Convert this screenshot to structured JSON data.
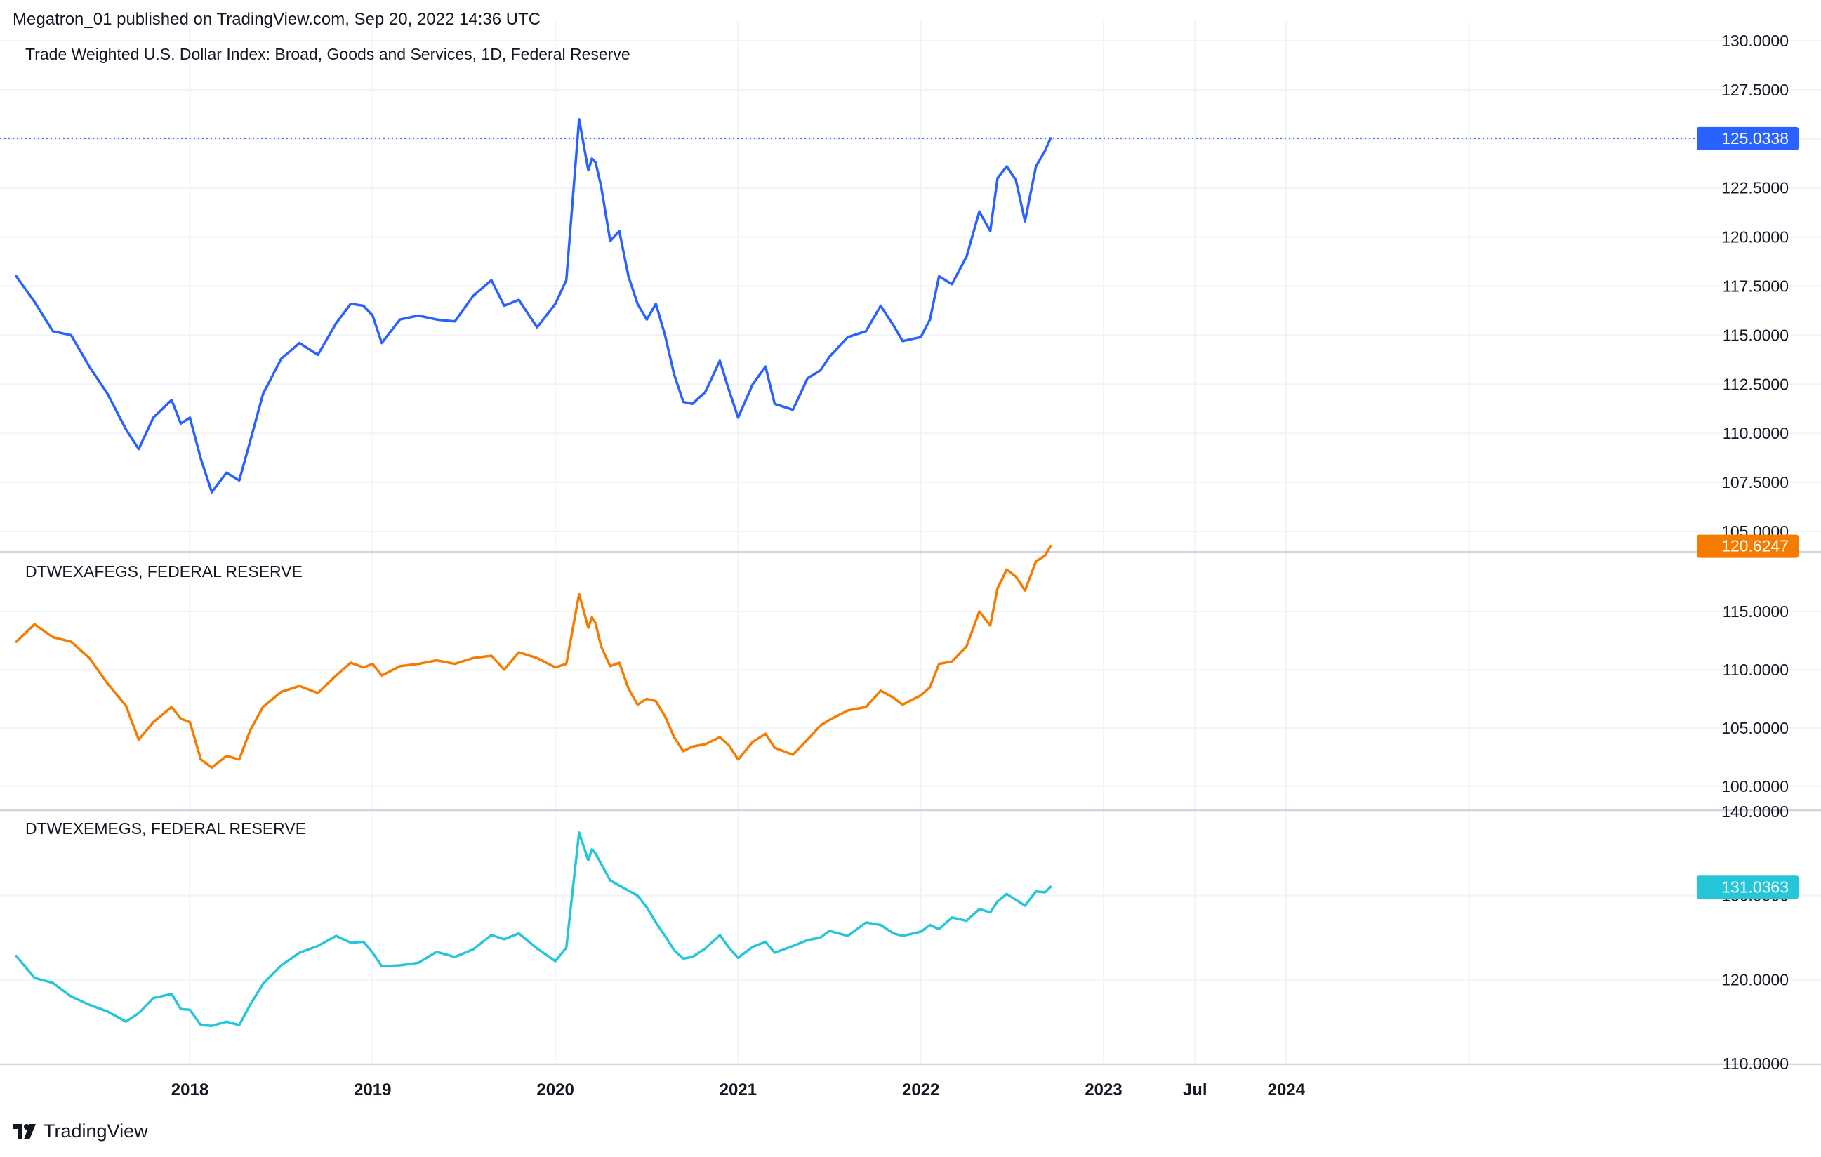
{
  "header": {
    "text": "Megatron_01 published on TradingView.com, Sep 20, 2022 14:36 UTC"
  },
  "footer": {
    "brand": "TradingView",
    "logo_icon": "tradingview-logo-icon"
  },
  "chart_data": [
    {
      "type": "line",
      "title": "Trade Weighted U.S. Dollar Index: Broad, Goods and Services, 1D, Federal Reserve",
      "color": "#2962ff",
      "last_value_label": "125.0338",
      "last_value": 125.0338,
      "ylim": [
        104.0,
        130.0
      ],
      "yticks": [
        105,
        107.5,
        110,
        112.5,
        115,
        117.5,
        120,
        122.5,
        125,
        127.5,
        130
      ],
      "ytick_labels": [
        "105.0000",
        "107.5000",
        "110.0000",
        "112.5000",
        "115.0000",
        "117.5000",
        "120.0000",
        "122.5000",
        "125.0000",
        "127.5000",
        "130.0000"
      ],
      "hidden_tick_labels": [
        "125.0000"
      ],
      "price_line": true,
      "series": [
        {
          "x": [
            2017.05,
            2017.15,
            2017.25,
            2017.35,
            2017.45,
            2017.55,
            2017.65,
            2017.72,
            2017.8,
            2017.9,
            2017.95,
            2018.0,
            2018.06,
            2018.12,
            2018.2,
            2018.27,
            2018.33,
            2018.4,
            2018.5,
            2018.6,
            2018.7,
            2018.8,
            2018.88,
            2018.95,
            2019.0,
            2019.05,
            2019.15,
            2019.25,
            2019.35,
            2019.45,
            2019.55,
            2019.65,
            2019.72,
            2019.8,
            2019.9,
            2020.0,
            2020.06,
            2020.13,
            2020.18,
            2020.2,
            2020.22,
            2020.25,
            2020.3,
            2020.35,
            2020.4,
            2020.45,
            2020.5,
            2020.55,
            2020.6,
            2020.65,
            2020.7,
            2020.75,
            2020.82,
            2020.9,
            2020.95,
            2021.0,
            2021.08,
            2021.15,
            2021.2,
            2021.3,
            2021.38,
            2021.45,
            2021.5,
            2021.6,
            2021.7,
            2021.78,
            2021.85,
            2021.9,
            2022.0,
            2022.05,
            2022.1,
            2022.17,
            2022.25,
            2022.32,
            2022.38,
            2022.42,
            2022.47,
            2022.52,
            2022.57,
            2022.63,
            2022.68,
            2022.71
          ],
          "y": [
            118.0,
            116.7,
            115.2,
            115.0,
            113.4,
            112.0,
            110.2,
            109.2,
            110.8,
            111.7,
            110.5,
            110.8,
            108.7,
            107.0,
            108.0,
            107.6,
            109.6,
            112.0,
            113.8,
            114.6,
            114.0,
            115.6,
            116.6,
            116.5,
            116.0,
            114.6,
            115.8,
            116.0,
            115.8,
            115.7,
            117.0,
            117.8,
            116.5,
            116.8,
            115.4,
            116.6,
            117.8,
            126.0,
            123.4,
            124.0,
            123.8,
            122.6,
            119.8,
            120.3,
            118.0,
            116.6,
            115.8,
            116.6,
            115.0,
            113.0,
            111.6,
            111.5,
            112.1,
            113.7,
            112.2,
            110.8,
            112.5,
            113.4,
            111.5,
            111.2,
            112.8,
            113.2,
            113.9,
            114.9,
            115.2,
            116.5,
            115.5,
            114.7,
            114.9,
            115.8,
            118.0,
            117.6,
            119.0,
            121.3,
            120.3,
            123.0,
            123.6,
            122.9,
            120.8,
            123.6,
            124.4,
            125.03
          ]
        }
      ]
    },
    {
      "type": "line",
      "title": "DTWEXAFEGS, FEDERAL RESERVE",
      "color": "#f57c00",
      "last_value_label": "120.6247",
      "last_value": 120.6247,
      "ylim": [
        98.0,
        120.0
      ],
      "yticks": [
        100,
        105,
        110,
        115
      ],
      "ytick_labels": [
        "100.0000",
        "105.0000",
        "110.0000",
        "115.0000"
      ],
      "series": [
        {
          "x": [
            2017.05,
            2017.15,
            2017.25,
            2017.35,
            2017.45,
            2017.55,
            2017.65,
            2017.72,
            2017.8,
            2017.9,
            2017.95,
            2018.0,
            2018.06,
            2018.12,
            2018.2,
            2018.27,
            2018.33,
            2018.4,
            2018.5,
            2018.6,
            2018.7,
            2018.8,
            2018.88,
            2018.95,
            2019.0,
            2019.05,
            2019.15,
            2019.25,
            2019.35,
            2019.45,
            2019.55,
            2019.65,
            2019.72,
            2019.8,
            2019.9,
            2020.0,
            2020.06,
            2020.13,
            2020.18,
            2020.2,
            2020.22,
            2020.25,
            2020.3,
            2020.35,
            2020.4,
            2020.45,
            2020.5,
            2020.55,
            2020.6,
            2020.65,
            2020.7,
            2020.75,
            2020.82,
            2020.9,
            2020.95,
            2021.0,
            2021.08,
            2021.15,
            2021.2,
            2021.3,
            2021.38,
            2021.45,
            2021.5,
            2021.6,
            2021.7,
            2021.78,
            2021.85,
            2021.9,
            2022.0,
            2022.05,
            2022.1,
            2022.17,
            2022.25,
            2022.32,
            2022.38,
            2022.42,
            2022.47,
            2022.52,
            2022.57,
            2022.63,
            2022.68,
            2022.71
          ],
          "y": [
            112.4,
            113.9,
            112.8,
            112.4,
            111.0,
            108.8,
            106.9,
            104.0,
            105.5,
            106.8,
            105.8,
            105.5,
            102.3,
            101.6,
            102.6,
            102.3,
            104.8,
            106.8,
            108.1,
            108.6,
            108.0,
            109.5,
            110.6,
            110.2,
            110.5,
            109.5,
            110.3,
            110.5,
            110.8,
            110.5,
            111.0,
            111.2,
            110.0,
            111.5,
            111.0,
            110.2,
            110.5,
            116.5,
            113.6,
            114.5,
            114.0,
            112.0,
            110.3,
            110.6,
            108.4,
            107.0,
            107.5,
            107.3,
            106.0,
            104.2,
            103.0,
            103.4,
            103.6,
            104.2,
            103.5,
            102.3,
            103.8,
            104.5,
            103.3,
            102.7,
            104.0,
            105.2,
            105.7,
            106.5,
            106.8,
            108.2,
            107.6,
            107.0,
            107.8,
            108.5,
            110.5,
            110.7,
            112.0,
            115.0,
            113.8,
            117.0,
            118.6,
            118.0,
            116.8,
            119.3,
            119.8,
            120.62
          ]
        }
      ]
    },
    {
      "type": "line",
      "title": "DTWEXEMEGS, FEDERAL RESERVE",
      "color": "#26c6da",
      "last_value_label": "131.0363",
      "last_value": 131.0363,
      "ylim": [
        110.0,
        140.0
      ],
      "yticks": [
        110,
        120,
        130,
        140
      ],
      "ytick_labels": [
        "110.0000",
        "120.0000",
        "130.0000",
        "140.0000"
      ],
      "hidden_tick_labels": [
        "130.0000"
      ],
      "series": [
        {
          "x": [
            2017.05,
            2017.15,
            2017.25,
            2017.35,
            2017.45,
            2017.55,
            2017.65,
            2017.72,
            2017.8,
            2017.9,
            2017.95,
            2018.0,
            2018.06,
            2018.12,
            2018.2,
            2018.27,
            2018.33,
            2018.4,
            2018.5,
            2018.6,
            2018.7,
            2018.8,
            2018.88,
            2018.95,
            2019.0,
            2019.05,
            2019.15,
            2019.25,
            2019.35,
            2019.45,
            2019.55,
            2019.65,
            2019.72,
            2019.8,
            2019.9,
            2020.0,
            2020.06,
            2020.13,
            2020.18,
            2020.2,
            2020.22,
            2020.25,
            2020.3,
            2020.35,
            2020.4,
            2020.45,
            2020.5,
            2020.55,
            2020.6,
            2020.65,
            2020.7,
            2020.75,
            2020.82,
            2020.9,
            2020.95,
            2021.0,
            2021.08,
            2021.15,
            2021.2,
            2021.3,
            2021.38,
            2021.45,
            2021.5,
            2021.6,
            2021.7,
            2021.78,
            2021.85,
            2021.9,
            2022.0,
            2022.05,
            2022.1,
            2022.17,
            2022.25,
            2022.32,
            2022.38,
            2022.42,
            2022.47,
            2022.52,
            2022.57,
            2022.63,
            2022.68,
            2022.71
          ],
          "y": [
            122.8,
            120.2,
            119.6,
            118.0,
            117.0,
            116.2,
            115.0,
            116.0,
            117.8,
            118.3,
            116.5,
            116.4,
            114.6,
            114.5,
            115.0,
            114.6,
            117.0,
            119.5,
            121.7,
            123.2,
            124.0,
            125.2,
            124.4,
            124.5,
            123.2,
            121.6,
            121.7,
            122.0,
            123.3,
            122.7,
            123.6,
            125.3,
            124.8,
            125.5,
            123.7,
            122.2,
            123.8,
            137.5,
            134.2,
            135.5,
            135.0,
            133.8,
            131.8,
            131.2,
            130.6,
            130.0,
            128.6,
            126.8,
            125.2,
            123.5,
            122.5,
            122.7,
            123.7,
            125.3,
            123.8,
            122.6,
            123.9,
            124.5,
            123.2,
            124.0,
            124.7,
            125.0,
            125.8,
            125.2,
            126.8,
            126.5,
            125.5,
            125.2,
            125.7,
            126.5,
            126.0,
            127.4,
            127.0,
            128.4,
            128.0,
            129.3,
            130.2,
            129.5,
            128.8,
            130.5,
            130.4,
            131.04
          ]
        }
      ]
    }
  ],
  "time_axis": {
    "labels": [
      "2018",
      "2019",
      "2020",
      "2021",
      "2022",
      "2023",
      "Jul",
      "2024"
    ],
    "positions": [
      2018.0,
      2019.0,
      2020.0,
      2021.0,
      2022.0,
      2023.0,
      2023.5,
      2024.0
    ],
    "bold": [
      true,
      true,
      true,
      true,
      true,
      true,
      false,
      true
    ],
    "grid_positions": [
      2018.0,
      2019.0,
      2020.0,
      2021.0,
      2022.0,
      2023.0,
      2023.5,
      2024.0,
      2025.0
    ],
    "xlim": [
      2017.03,
      2026.2
    ]
  }
}
